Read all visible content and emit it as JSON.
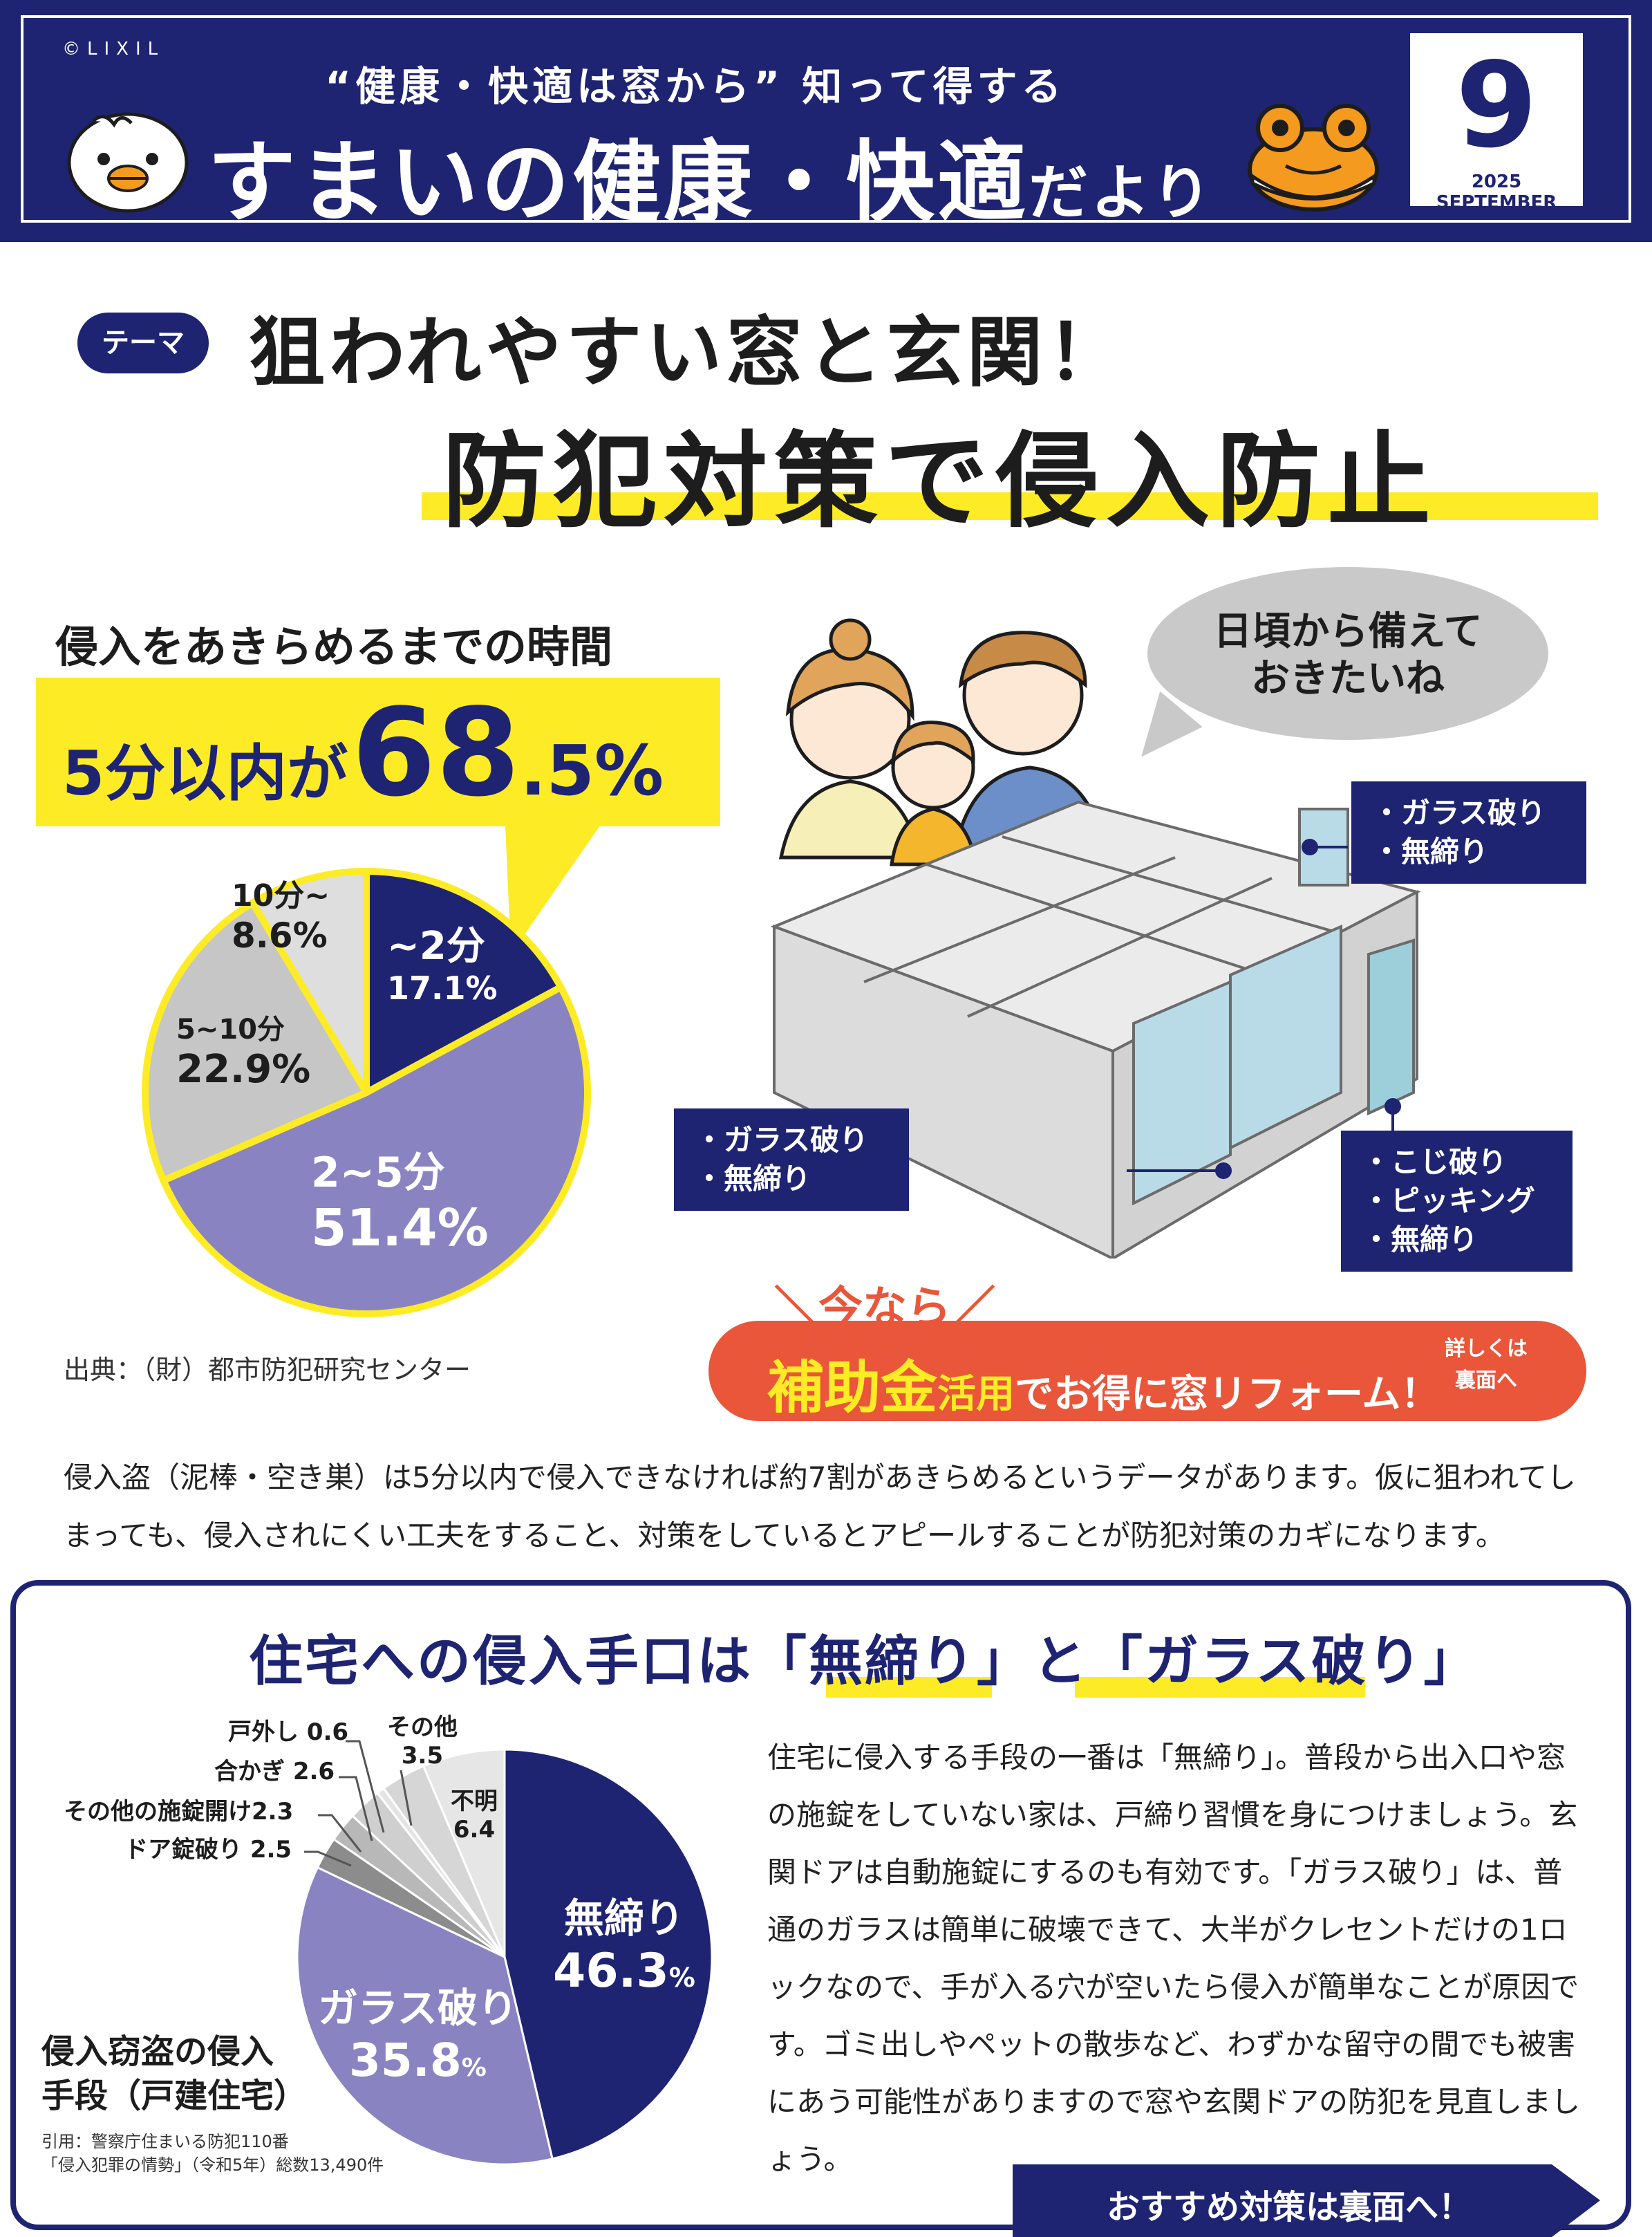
{
  "header": {
    "copyright": "©LIXIL",
    "subtitle": "“健康・快適は窓から” 知って得する",
    "title_main": "すまいの健康・快適",
    "title_small": "だより",
    "month": "9",
    "month_sub": "2025 SEPTEMBER"
  },
  "theme": {
    "pill": "テーマ",
    "line1": "狙われやすい窓と玄関！",
    "line2": "防犯対策で侵入防止"
  },
  "stat": {
    "heading": "侵入をあきらめるまでの時間",
    "prefix": "5分以内が",
    "value_int": "68",
    "value_dec": ".5",
    "value_pct": "%"
  },
  "chart_data": [
    {
      "type": "pie",
      "title": "侵入をあきらめるまでの時間",
      "categories": [
        "~2分",
        "2~5分",
        "5~10分",
        "10分~"
      ],
      "values": [
        17.1,
        51.4,
        22.9,
        8.6
      ],
      "colors": [
        "#1e2472",
        "#8a83c2",
        "#c6c6c6",
        "#dedede"
      ]
    },
    {
      "type": "pie",
      "title": "侵入窃盗の侵入手段（戸建住宅）",
      "categories": [
        "無締り",
        "ガラス破り",
        "ドア錠破り",
        "その他の施錠開け",
        "合かぎ",
        "戸外し",
        "その他",
        "不明"
      ],
      "values": [
        46.3,
        35.8,
        2.5,
        2.3,
        2.6,
        0.6,
        3.5,
        6.4
      ],
      "colors": [
        "#1e2472",
        "#8a83c2",
        "#8c8c8c",
        "#b8b8b8",
        "#cfcfcf",
        "#e4e4e4",
        "#d6d6d6",
        "#e6e6e6"
      ]
    }
  ],
  "pie1_labels": {
    "a_name": "~2分",
    "a_val": "17.1%",
    "b_name": "2~5分",
    "b_val": "51.4%",
    "c_name": "5~10分",
    "c_val": "22.9%",
    "d_name": "10分~",
    "d_val": "8.6%"
  },
  "source1": "出典：（財）都市防犯研究センター",
  "bubble": "日頃から備えて\nおきたいね",
  "callouts": {
    "window_top": "・ガラス破り\n・無締り",
    "window_left": "・ガラス破り\n・無締り",
    "door": "・こじ破り\n・ピッキング\n・無締り"
  },
  "promo": {
    "top": "＼今なら／",
    "strong": "補助金",
    "mid": "活用",
    "rest": "でお得に窓リフォーム！",
    "side": "詳しくは\n裏面へ"
  },
  "paragraph": "侵入盗（泥棒・空き巣）は5分以内で侵入できなければ約7割があきらめるというデータがあります。仮に狙われてしまっても、侵入されにくい工夫をすること、対策をしているとアピールすることが防犯対策のカギになります。",
  "panel": {
    "title": "住宅への侵入手口は「無締り」と「ガラス破り」",
    "pie_labels": {
      "main_name": "無締り",
      "main_val": "46.3",
      "glass_name": "ガラス破り",
      "glass_val": "35.8",
      "pct": "%",
      "unknown": "不明\n6.4",
      "other": "その他\n3.5",
      "door_out": "戸外し 0.6",
      "dup_key": "合かぎ 2.6",
      "other_lock": "その他の施錠開け2.3",
      "door_lock": "ドア錠破り 2.5"
    },
    "chart_title": "侵入窃盗の侵入\n手段（戸建住宅）",
    "source": "引用：警察庁住まいる防犯110番\n「侵入犯罪の情勢」（令和5年）総数13,490件",
    "body": "住宅に侵入する手段の一番は「無締り」。普段から出入口や窓の施錠をしていない家は、戸締り習慣を身につけましょう。玄関ドアは自動施錠にするのも有効です。「ガラス破り」は、普通のガラスは簡単に破壊できて、大半がクレセントだけの1ロックなので、手が入る穴が空いたら侵入が簡単なことが原因です。ゴミ出しやペットの散歩など、わずかな留守の間でも被害にあう可能性がありますので窓や玄関ドアの防犯を見直しましょう。",
    "recommend": "おすすめ対策は裏面へ！"
  }
}
